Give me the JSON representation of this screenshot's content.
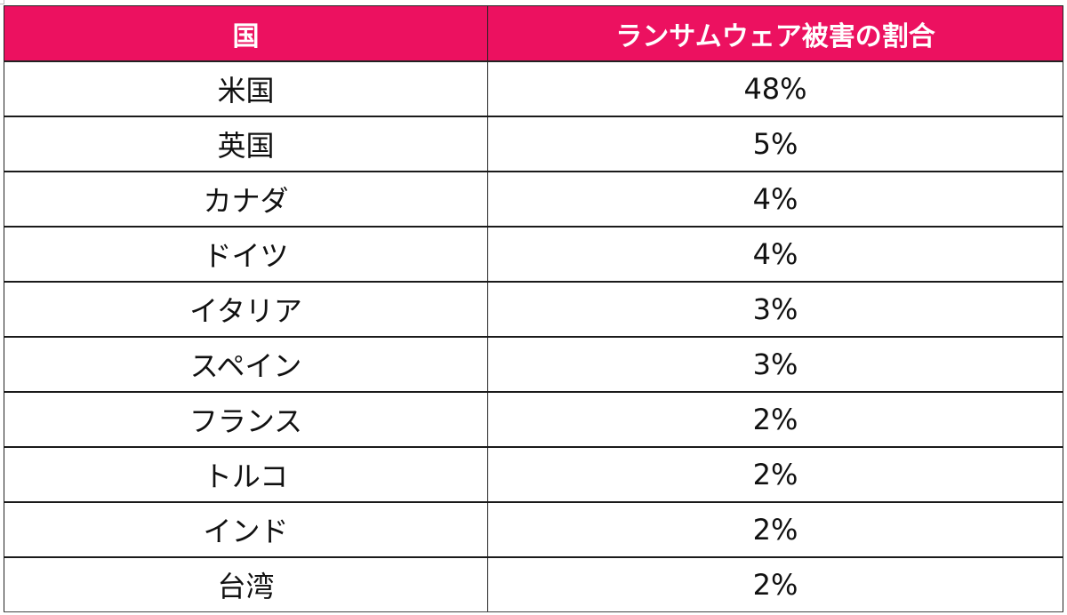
{
  "table": {
    "headers": [
      "国",
      "ランサムウェア被害の割合"
    ],
    "header_color": "#ec1160",
    "rows": [
      {
        "country": "米国",
        "share": "48%"
      },
      {
        "country": "英国",
        "share": "5%"
      },
      {
        "country": "カナダ",
        "share": "4%"
      },
      {
        "country": "ドイツ",
        "share": "4%"
      },
      {
        "country": "イタリア",
        "share": "3%"
      },
      {
        "country": "スペイン",
        "share": "3%"
      },
      {
        "country": "フランス",
        "share": "2%"
      },
      {
        "country": "トルコ",
        "share": "2%"
      },
      {
        "country": "インド",
        "share": "2%"
      },
      {
        "country": "台湾",
        "share": "2%"
      }
    ]
  }
}
